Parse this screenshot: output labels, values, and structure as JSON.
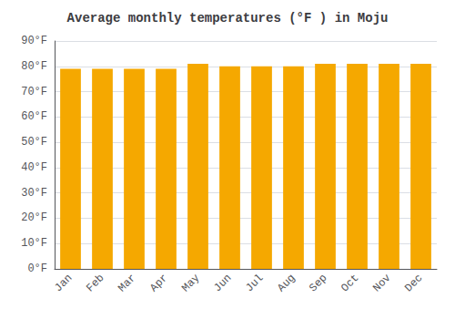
{
  "chart_data": {
    "type": "bar",
    "title": "Average monthly temperatures (°F ) in Moju",
    "categories": [
      "Jan",
      "Feb",
      "Mar",
      "Apr",
      "May",
      "Jun",
      "Jul",
      "Aug",
      "Sep",
      "Oct",
      "Nov",
      "Dec"
    ],
    "values": [
      79,
      79,
      79,
      79,
      81,
      80,
      80,
      80,
      81,
      81,
      81,
      81
    ],
    "color": "#F5A800",
    "ylim": [
      0,
      90
    ],
    "yticks": [
      {
        "value": 0,
        "label": "0°F"
      },
      {
        "value": 10,
        "label": "10°F"
      },
      {
        "value": 20,
        "label": "20°F"
      },
      {
        "value": 30,
        "label": "30°F"
      },
      {
        "value": 40,
        "label": "40°F"
      },
      {
        "value": 50,
        "label": "50°F"
      },
      {
        "value": 60,
        "label": "60°F"
      },
      {
        "value": 70,
        "label": "70°F"
      },
      {
        "value": 80,
        "label": "80°F"
      },
      {
        "value": 90,
        "label": "90°F"
      }
    ],
    "grid": true
  }
}
